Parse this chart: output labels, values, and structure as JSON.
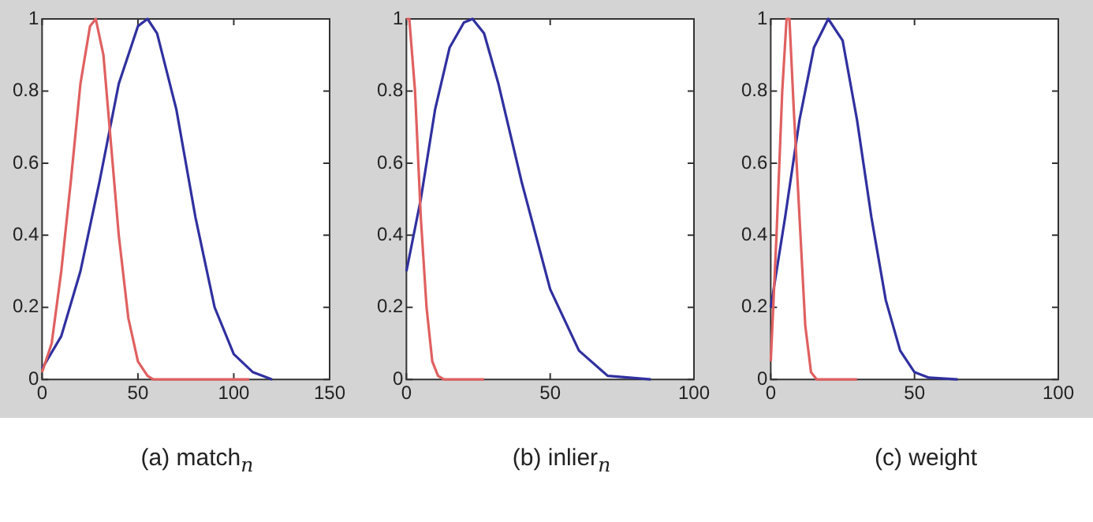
{
  "chart_data": [
    {
      "type": "line",
      "xlabel": "(a) match$_{n}$",
      "xlim": [
        0,
        150
      ],
      "xticks": [
        0,
        50,
        100,
        150
      ],
      "ylim": [
        0,
        1
      ],
      "yticks": [
        0,
        0.2,
        0.4,
        0.6,
        0.8,
        1
      ],
      "legend": false,
      "series": [
        {
          "color": "#e06060",
          "x": [
            0,
            5,
            10,
            15,
            20,
            25,
            28,
            32,
            36,
            40,
            45,
            50,
            55,
            58,
            108
          ],
          "values": [
            0.02,
            0.1,
            0.3,
            0.55,
            0.82,
            0.98,
            1,
            0.9,
            0.65,
            0.4,
            0.17,
            0.05,
            0.01,
            0,
            0
          ]
        },
        {
          "color": "#3030a0",
          "x": [
            0,
            10,
            20,
            30,
            40,
            50,
            55,
            60,
            70,
            80,
            90,
            100,
            110,
            120
          ],
          "values": [
            0.03,
            0.12,
            0.3,
            0.55,
            0.82,
            0.98,
            1,
            0.96,
            0.75,
            0.45,
            0.2,
            0.07,
            0.02,
            0
          ]
        }
      ]
    },
    {
      "type": "line",
      "xlabel": "(b) inlier$_{n}$",
      "xlim": [
        0,
        100
      ],
      "xticks": [
        0,
        50,
        100
      ],
      "ylim": [
        0,
        1
      ],
      "yticks": [
        0,
        0.2,
        0.4,
        0.6,
        0.8,
        1
      ],
      "legend": false,
      "series": [
        {
          "color": "#e06060",
          "x": [
            0,
            1,
            3,
            5,
            7,
            9,
            11,
            13,
            27
          ],
          "values": [
            1,
            1,
            0.8,
            0.45,
            0.2,
            0.05,
            0.01,
            0,
            0
          ]
        },
        {
          "color": "#3030a0",
          "x": [
            0,
            5,
            10,
            15,
            20,
            23,
            27,
            32,
            40,
            50,
            60,
            70,
            85
          ],
          "values": [
            0.3,
            0.5,
            0.75,
            0.92,
            0.99,
            1,
            0.96,
            0.82,
            0.55,
            0.25,
            0.08,
            0.01,
            0
          ]
        }
      ]
    },
    {
      "type": "line",
      "xlabel": "(c) weight",
      "xlim": [
        0,
        100
      ],
      "xticks": [
        0,
        50,
        100
      ],
      "ylim": [
        0,
        1
      ],
      "yticks": [
        0,
        0.2,
        0.4,
        0.6,
        0.8,
        1
      ],
      "legend": false,
      "series": [
        {
          "color": "#e06060",
          "x": [
            0,
            2,
            4,
            5.5,
            6.5,
            8,
            10,
            12,
            14,
            16,
            30
          ],
          "values": [
            0.05,
            0.4,
            0.8,
            1,
            1,
            0.75,
            0.45,
            0.15,
            0.02,
            0,
            0
          ]
        },
        {
          "color": "#3030a0",
          "x": [
            0,
            5,
            10,
            15,
            20,
            25,
            30,
            35,
            40,
            45,
            50,
            55,
            65
          ],
          "values": [
            0.2,
            0.45,
            0.72,
            0.92,
            1,
            0.94,
            0.72,
            0.45,
            0.22,
            0.08,
            0.02,
            0.005,
            0
          ]
        }
      ]
    }
  ]
}
